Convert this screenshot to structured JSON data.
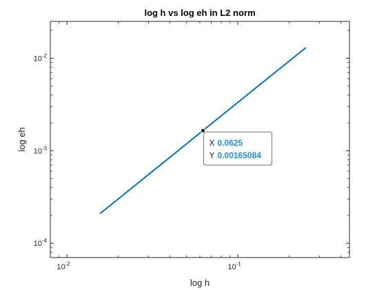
{
  "chart_data": {
    "type": "line",
    "title": "log h vs log eh in L2 norm",
    "xlabel": "log h",
    "ylabel": "log eh",
    "xscale": "log",
    "yscale": "log",
    "xlim": [
      0.008,
      0.45
    ],
    "ylim": [
      7e-05,
      0.025
    ],
    "xticks": [
      {
        "value": 0.01,
        "base": "10",
        "exp": "-2"
      },
      {
        "value": 0.1,
        "base": "10",
        "exp": "-1"
      }
    ],
    "yticks": [
      {
        "value": 0.0001,
        "base": "10",
        "exp": "-4"
      },
      {
        "value": 0.001,
        "base": "10",
        "exp": "-3"
      },
      {
        "value": 0.01,
        "base": "10",
        "exp": "-2"
      }
    ],
    "grid": false,
    "series": [
      {
        "color": "#0072BD",
        "x": [
          0.015625,
          0.03125,
          0.0625,
          0.125,
          0.25
        ],
        "y": [
          0.000209,
          0.000587,
          0.00165084,
          0.00464,
          0.013
        ]
      }
    ],
    "datatip": {
      "x_key": "X",
      "y_key": "Y",
      "x_value": "0.0625",
      "y_value": "0.00165084",
      "x": 0.0625,
      "y": 0.00165084,
      "value_color": "#1E8FE8"
    }
  }
}
